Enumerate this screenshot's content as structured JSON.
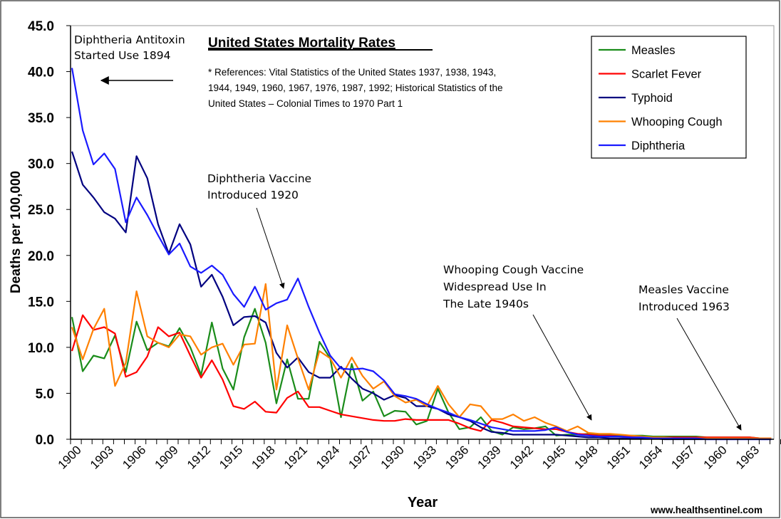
{
  "chart_data": {
    "type": "line",
    "title": "United States Mortality Rates",
    "references": [
      "* References: Vital Statistics of the United States 1937, 1938, 1943,",
      "1944, 1949, 1960, 1967, 1976, 1987, 1992; Historical Statistics of the",
      "United States – Colonial Times to 1970 Part 1"
    ],
    "xlabel": "Year",
    "ylabel": "Deaths per 100,000",
    "ylim": [
      0,
      45
    ],
    "yticks": [
      "0.0",
      "5.0",
      "10.0",
      "15.0",
      "20.0",
      "25.0",
      "30.0",
      "35.0",
      "40.0",
      "45.0"
    ],
    "xticks": [
      "1900",
      "1903",
      "1906",
      "1909",
      "1912",
      "1915",
      "1918",
      "1921",
      "1924",
      "1927",
      "1930",
      "1933",
      "1936",
      "1939",
      "1942",
      "1945",
      "1948",
      "1951",
      "1954",
      "1957",
      "1960",
      "1963"
    ],
    "x_start": 1900,
    "x_end": 1965,
    "grid": false,
    "legend_position": "top-right",
    "series": [
      {
        "name": "Measles",
        "color": "#1a8c1a",
        "values": [
          13.3,
          7.4,
          9.1,
          8.8,
          11.3,
          7.3,
          12.8,
          9.7,
          10.5,
          10.1,
          12.1,
          10.0,
          7.0,
          12.7,
          7.7,
          5.4,
          11.1,
          14.2,
          10.5,
          3.9,
          8.7,
          4.4,
          4.4,
          10.6,
          8.8,
          2.4,
          8.2,
          4.2,
          5.2,
          2.5,
          3.1,
          3.0,
          1.6,
          2.0,
          5.5,
          2.9,
          1.1,
          1.3,
          2.4,
          0.9,
          0.5,
          1.3,
          1.1,
          1.2,
          1.4,
          0.4,
          0.5,
          0.5,
          0.6,
          0.5,
          0.5,
          0.4,
          0.4,
          0.4,
          0.3,
          0.3,
          0.3,
          0.3,
          0.3,
          0.2,
          0.2,
          0.2,
          0.2,
          0.2,
          0.1,
          0.1
        ]
      },
      {
        "name": "Scarlet Fever",
        "color": "#ff0000",
        "values": [
          9.6,
          13.5,
          11.9,
          12.2,
          11.5,
          6.8,
          7.3,
          9.0,
          12.2,
          11.2,
          11.6,
          9.1,
          6.7,
          8.6,
          6.5,
          3.6,
          3.3,
          4.1,
          3.0,
          2.9,
          4.5,
          5.2,
          3.5,
          3.5,
          3.1,
          2.7,
          2.5,
          2.3,
          2.1,
          2.0,
          2.0,
          2.2,
          2.1,
          2.1,
          2.1,
          2.1,
          1.7,
          1.2,
          0.9,
          2.1,
          1.8,
          1.4,
          1.3,
          1.2,
          1.1,
          1.1,
          0.8,
          0.6,
          0.5,
          0.4,
          0.4,
          0.3,
          0.3,
          0.2,
          0.2,
          0.2,
          0.2,
          0.2,
          0.2,
          0.2,
          0.2,
          0.2,
          0.2,
          0.2,
          0.1,
          0.1
        ]
      },
      {
        "name": "Typhoid",
        "color": "#000080",
        "values": [
          31.3,
          27.7,
          26.3,
          24.7,
          24.0,
          22.5,
          30.8,
          28.4,
          23.4,
          20.2,
          23.4,
          21.2,
          16.6,
          17.9,
          15.5,
          12.4,
          13.3,
          13.4,
          12.7,
          9.4,
          7.8,
          8.9,
          7.3,
          6.7,
          6.7,
          7.9,
          6.6,
          5.5,
          5.0,
          4.3,
          4.8,
          4.5,
          3.6,
          3.6,
          3.3,
          2.7,
          2.4,
          2.0,
          1.3,
          0.8,
          0.7,
          0.5,
          0.5,
          0.5,
          0.5,
          0.5,
          0.4,
          0.3,
          0.2,
          0.2,
          0.1,
          0.1,
          0.1,
          0.1,
          0.1,
          0.0,
          0.0,
          0.0,
          0.0,
          0.0,
          0.0,
          0.0,
          0.0,
          0.0,
          0.0,
          0.0
        ]
      },
      {
        "name": "Whooping Cough",
        "color": "#ff8000",
        "values": [
          12.2,
          8.7,
          12.0,
          14.2,
          5.8,
          8.3,
          16.1,
          11.2,
          10.5,
          10.0,
          11.4,
          11.2,
          9.2,
          10.0,
          10.4,
          8.1,
          10.3,
          10.4,
          16.9,
          5.4,
          12.4,
          8.8,
          5.4,
          9.6,
          8.8,
          6.7,
          8.9,
          6.9,
          5.5,
          6.3,
          4.7,
          4.0,
          4.3,
          3.6,
          5.8,
          3.8,
          2.4,
          3.8,
          3.6,
          2.2,
          2.2,
          2.7,
          2.0,
          2.4,
          1.8,
          1.4,
          0.9,
          1.4,
          0.7,
          0.6,
          0.6,
          0.5,
          0.4,
          0.3,
          0.2,
          0.2,
          0.1,
          0.1,
          0.1,
          0.1,
          0.1,
          0.1,
          0.1,
          0.1,
          0.1,
          0.1
        ]
      },
      {
        "name": "Diphtheria",
        "color": "#1a1aff",
        "values": [
          40.4,
          33.6,
          29.9,
          31.1,
          29.4,
          23.6,
          26.3,
          24.4,
          22.2,
          20.1,
          21.3,
          18.8,
          18.1,
          18.9,
          17.9,
          15.8,
          14.4,
          16.6,
          14.1,
          14.8,
          15.2,
          17.5,
          14.4,
          11.6,
          9.1,
          7.7,
          7.6,
          7.7,
          7.4,
          6.4,
          4.9,
          4.7,
          4.4,
          3.8,
          3.3,
          2.9,
          2.4,
          2.1,
          1.7,
          1.3,
          1.1,
          0.9,
          0.9,
          0.9,
          1.0,
          1.3,
          0.8,
          0.5,
          0.4,
          0.3,
          0.3,
          0.3,
          0.2,
          0.2,
          0.1,
          0.1,
          0.1,
          0.1,
          0.1,
          0.0,
          0.0,
          0.0,
          0.0,
          0.0,
          0.0,
          0.0
        ]
      }
    ],
    "annotations": [
      {
        "lines": [
          "Diphtheria Antitoxin",
          "Started Use 1894"
        ]
      },
      {
        "lines": [
          "Diphtheria Vaccine",
          "Introduced 1920"
        ]
      },
      {
        "lines": [
          "Whooping Cough Vaccine",
          "Widespread Use In",
          "The Late 1940s"
        ]
      },
      {
        "lines": [
          "Measles Vaccine",
          "Introduced 1963"
        ]
      }
    ]
  },
  "watermark": "www.healthsentinel.com"
}
